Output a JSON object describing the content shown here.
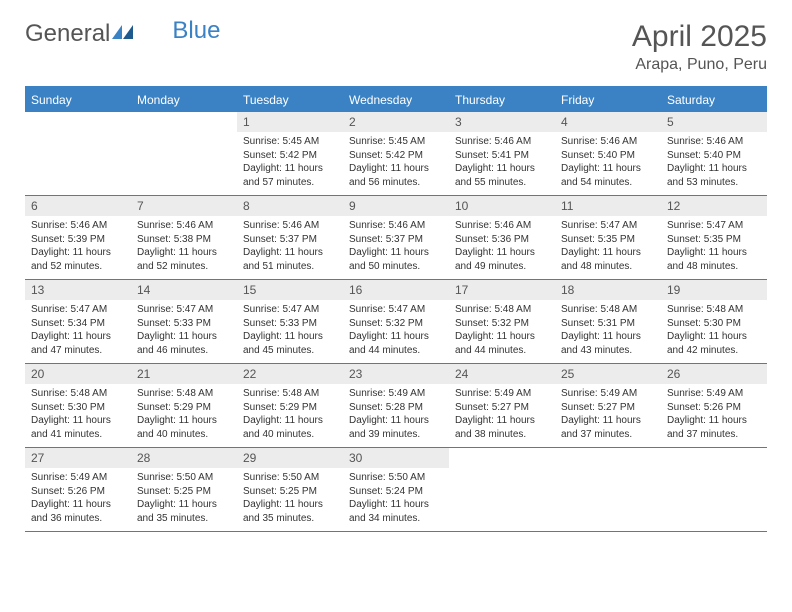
{
  "logo": {
    "part1": "General",
    "part2": "Blue"
  },
  "title": "April 2025",
  "location": "Arapa, Puno, Peru",
  "colors": {
    "header_bg": "#3b82c4",
    "header_text": "#ffffff",
    "daynum_bg": "#ececec",
    "text": "#555555",
    "body_text": "#333333",
    "border": "#3b82c4"
  },
  "weekdays": [
    "Sunday",
    "Monday",
    "Tuesday",
    "Wednesday",
    "Thursday",
    "Friday",
    "Saturday"
  ],
  "weeks": [
    [
      null,
      null,
      {
        "n": "1",
        "sr": "5:45 AM",
        "ss": "5:42 PM",
        "dh": "11",
        "dm": "57"
      },
      {
        "n": "2",
        "sr": "5:45 AM",
        "ss": "5:42 PM",
        "dh": "11",
        "dm": "56"
      },
      {
        "n": "3",
        "sr": "5:46 AM",
        "ss": "5:41 PM",
        "dh": "11",
        "dm": "55"
      },
      {
        "n": "4",
        "sr": "5:46 AM",
        "ss": "5:40 PM",
        "dh": "11",
        "dm": "54"
      },
      {
        "n": "5",
        "sr": "5:46 AM",
        "ss": "5:40 PM",
        "dh": "11",
        "dm": "53"
      }
    ],
    [
      {
        "n": "6",
        "sr": "5:46 AM",
        "ss": "5:39 PM",
        "dh": "11",
        "dm": "52"
      },
      {
        "n": "7",
        "sr": "5:46 AM",
        "ss": "5:38 PM",
        "dh": "11",
        "dm": "52"
      },
      {
        "n": "8",
        "sr": "5:46 AM",
        "ss": "5:37 PM",
        "dh": "11",
        "dm": "51"
      },
      {
        "n": "9",
        "sr": "5:46 AM",
        "ss": "5:37 PM",
        "dh": "11",
        "dm": "50"
      },
      {
        "n": "10",
        "sr": "5:46 AM",
        "ss": "5:36 PM",
        "dh": "11",
        "dm": "49"
      },
      {
        "n": "11",
        "sr": "5:47 AM",
        "ss": "5:35 PM",
        "dh": "11",
        "dm": "48"
      },
      {
        "n": "12",
        "sr": "5:47 AM",
        "ss": "5:35 PM",
        "dh": "11",
        "dm": "48"
      }
    ],
    [
      {
        "n": "13",
        "sr": "5:47 AM",
        "ss": "5:34 PM",
        "dh": "11",
        "dm": "47"
      },
      {
        "n": "14",
        "sr": "5:47 AM",
        "ss": "5:33 PM",
        "dh": "11",
        "dm": "46"
      },
      {
        "n": "15",
        "sr": "5:47 AM",
        "ss": "5:33 PM",
        "dh": "11",
        "dm": "45"
      },
      {
        "n": "16",
        "sr": "5:47 AM",
        "ss": "5:32 PM",
        "dh": "11",
        "dm": "44"
      },
      {
        "n": "17",
        "sr": "5:48 AM",
        "ss": "5:32 PM",
        "dh": "11",
        "dm": "44"
      },
      {
        "n": "18",
        "sr": "5:48 AM",
        "ss": "5:31 PM",
        "dh": "11",
        "dm": "43"
      },
      {
        "n": "19",
        "sr": "5:48 AM",
        "ss": "5:30 PM",
        "dh": "11",
        "dm": "42"
      }
    ],
    [
      {
        "n": "20",
        "sr": "5:48 AM",
        "ss": "5:30 PM",
        "dh": "11",
        "dm": "41"
      },
      {
        "n": "21",
        "sr": "5:48 AM",
        "ss": "5:29 PM",
        "dh": "11",
        "dm": "40"
      },
      {
        "n": "22",
        "sr": "5:48 AM",
        "ss": "5:29 PM",
        "dh": "11",
        "dm": "40"
      },
      {
        "n": "23",
        "sr": "5:49 AM",
        "ss": "5:28 PM",
        "dh": "11",
        "dm": "39"
      },
      {
        "n": "24",
        "sr": "5:49 AM",
        "ss": "5:27 PM",
        "dh": "11",
        "dm": "38"
      },
      {
        "n": "25",
        "sr": "5:49 AM",
        "ss": "5:27 PM",
        "dh": "11",
        "dm": "37"
      },
      {
        "n": "26",
        "sr": "5:49 AM",
        "ss": "5:26 PM",
        "dh": "11",
        "dm": "37"
      }
    ],
    [
      {
        "n": "27",
        "sr": "5:49 AM",
        "ss": "5:26 PM",
        "dh": "11",
        "dm": "36"
      },
      {
        "n": "28",
        "sr": "5:50 AM",
        "ss": "5:25 PM",
        "dh": "11",
        "dm": "35"
      },
      {
        "n": "29",
        "sr": "5:50 AM",
        "ss": "5:25 PM",
        "dh": "11",
        "dm": "35"
      },
      {
        "n": "30",
        "sr": "5:50 AM",
        "ss": "5:24 PM",
        "dh": "11",
        "dm": "34"
      },
      null,
      null,
      null
    ]
  ],
  "labels": {
    "sunrise": "Sunrise:",
    "sunset": "Sunset:",
    "daylight": "Daylight:",
    "hours": "hours",
    "and": "and",
    "minutes": "minutes."
  }
}
